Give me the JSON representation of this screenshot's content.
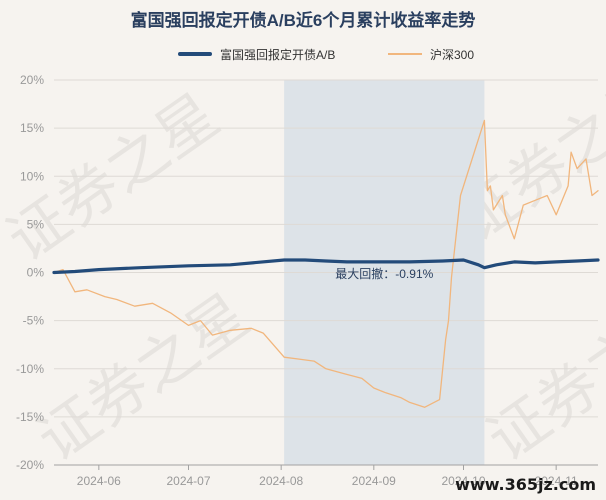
{
  "colors": {
    "fund": "#234b7a",
    "index": "#f1b67d",
    "shade": "#dde3e8",
    "grid": "#dedad5",
    "axis": "#a2a2a2"
  },
  "watermark": {
    "icon": "watermark-stamp-icon"
  },
  "brand_text": "www.365jz.com",
  "chart_data": {
    "type": "line",
    "title": "富国强回报定开债A/B近6个月累计收益率走势",
    "xlabel": "",
    "ylabel": "",
    "ylim": [
      -20,
      20
    ],
    "y_ticks": [
      "20%",
      "15%",
      "10%",
      "5%",
      "0%",
      "-5%",
      "-10%",
      "-15%",
      "-20%"
    ],
    "y_tick_values": [
      20,
      15,
      10,
      5,
      0,
      -5,
      -10,
      -15,
      -20
    ],
    "x_range": [
      "2024-05-17",
      "2024-11-15"
    ],
    "x_ticks": [
      "2024-06",
      "2024-07",
      "2024-08",
      "2024-09",
      "2024-10",
      "2024-11"
    ],
    "x_tick_dates": [
      "2024-06-01",
      "2024-07-01",
      "2024-08-01",
      "2024-09-01",
      "2024-10-01",
      "2024-11-01"
    ],
    "legend_position": "top-center",
    "grid": true,
    "max_drawdown": {
      "label": "最大回撤：-0.91%",
      "start": "2024-08-02",
      "end": "2024-10-08"
    },
    "series": [
      {
        "name": "富国强回报定开债A/B",
        "points": [
          [
            "2024-05-17",
            0.0
          ],
          [
            "2024-05-24",
            0.1
          ],
          [
            "2024-06-01",
            0.3
          ],
          [
            "2024-06-15",
            0.5
          ],
          [
            "2024-07-01",
            0.7
          ],
          [
            "2024-07-15",
            0.8
          ],
          [
            "2024-08-02",
            1.3
          ],
          [
            "2024-08-09",
            1.3
          ],
          [
            "2024-08-16",
            1.2
          ],
          [
            "2024-08-23",
            1.1
          ],
          [
            "2024-09-01",
            1.1
          ],
          [
            "2024-09-13",
            1.1
          ],
          [
            "2024-09-24",
            1.2
          ],
          [
            "2024-10-01",
            1.3
          ],
          [
            "2024-10-06",
            0.8
          ],
          [
            "2024-10-08",
            0.5
          ],
          [
            "2024-10-12",
            0.8
          ],
          [
            "2024-10-18",
            1.1
          ],
          [
            "2024-10-25",
            1.0
          ],
          [
            "2024-11-01",
            1.1
          ],
          [
            "2024-11-08",
            1.2
          ],
          [
            "2024-11-15",
            1.3
          ]
        ]
      },
      {
        "name": "沪深300",
        "points": [
          [
            "2024-05-17",
            0.0
          ],
          [
            "2024-05-20",
            0.3
          ],
          [
            "2024-05-24",
            -2.0
          ],
          [
            "2024-05-28",
            -1.8
          ],
          [
            "2024-06-03",
            -2.5
          ],
          [
            "2024-06-07",
            -2.8
          ],
          [
            "2024-06-13",
            -3.5
          ],
          [
            "2024-06-19",
            -3.2
          ],
          [
            "2024-06-25",
            -4.2
          ],
          [
            "2024-07-01",
            -5.5
          ],
          [
            "2024-07-05",
            -5.0
          ],
          [
            "2024-07-09",
            -6.5
          ],
          [
            "2024-07-15",
            -6.0
          ],
          [
            "2024-07-22",
            -5.8
          ],
          [
            "2024-07-26",
            -6.3
          ],
          [
            "2024-08-02",
            -8.8
          ],
          [
            "2024-08-07",
            -9.0
          ],
          [
            "2024-08-12",
            -9.2
          ],
          [
            "2024-08-16",
            -10.0
          ],
          [
            "2024-08-22",
            -10.5
          ],
          [
            "2024-08-28",
            -11.0
          ],
          [
            "2024-09-01",
            -12.0
          ],
          [
            "2024-09-05",
            -12.5
          ],
          [
            "2024-09-10",
            -13.0
          ],
          [
            "2024-09-13",
            -13.5
          ],
          [
            "2024-09-18",
            -14.0
          ],
          [
            "2024-09-23",
            -13.2
          ],
          [
            "2024-09-25",
            -7.0
          ],
          [
            "2024-09-26",
            -5.0
          ],
          [
            "2024-09-27",
            -0.5
          ],
          [
            "2024-09-30",
            8.0
          ],
          [
            "2024-10-08",
            15.8
          ],
          [
            "2024-10-09",
            8.5
          ],
          [
            "2024-10-10",
            9.0
          ],
          [
            "2024-10-11",
            6.5
          ],
          [
            "2024-10-14",
            8.0
          ],
          [
            "2024-10-15",
            6.0
          ],
          [
            "2024-10-18",
            3.5
          ],
          [
            "2024-10-21",
            7.0
          ],
          [
            "2024-10-25",
            7.5
          ],
          [
            "2024-10-29",
            8.0
          ],
          [
            "2024-11-01",
            6.0
          ],
          [
            "2024-11-05",
            9.0
          ],
          [
            "2024-11-06",
            12.5
          ],
          [
            "2024-11-08",
            10.8
          ],
          [
            "2024-11-11",
            11.8
          ],
          [
            "2024-11-13",
            8.0
          ],
          [
            "2024-11-15",
            8.5
          ]
        ]
      }
    ]
  }
}
